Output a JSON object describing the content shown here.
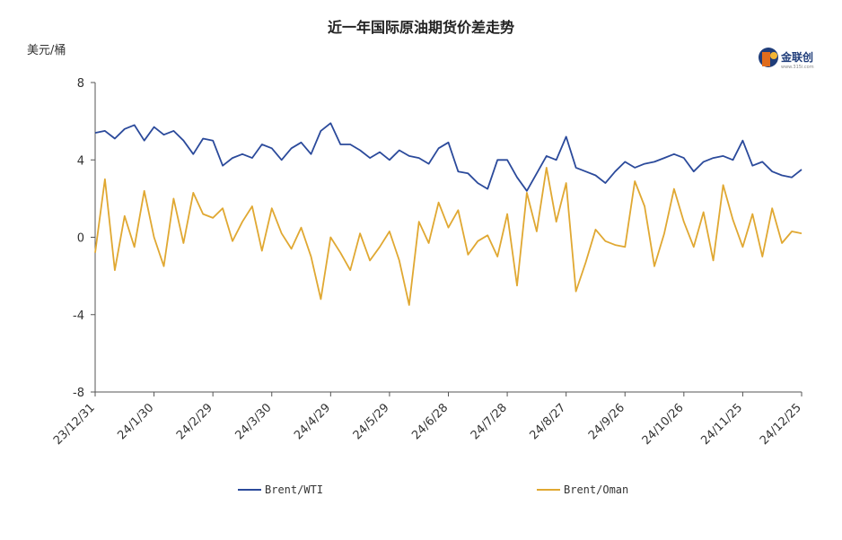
{
  "chart_data": {
    "type": "line",
    "title": "近一年国际原油期货价差走势",
    "ylabel": "美元/桶",
    "ylim": [
      -8,
      8
    ],
    "yticks": [
      8,
      4,
      0,
      -4,
      -8
    ],
    "x_tick_labels": [
      "23/12/31",
      "24/1/30",
      "24/2/29",
      "24/3/30",
      "24/4/29",
      "24/5/29",
      "24/6/28",
      "24/7/28",
      "24/8/27",
      "24/9/26",
      "24/10/26",
      "24/11/25",
      "24/12/25"
    ],
    "xlim": [
      "2023-12-31",
      "2024-12-25"
    ],
    "grid": false,
    "legend_position": "bottom",
    "series": [
      {
        "name": "Brent/WTI",
        "color": "#2b4a9b",
        "x": [
          "2023-12-31",
          "2024-01-05",
          "2024-01-10",
          "2024-01-15",
          "2024-01-20",
          "2024-01-25",
          "2024-01-30",
          "2024-02-04",
          "2024-02-09",
          "2024-02-14",
          "2024-02-19",
          "2024-02-24",
          "2024-02-29",
          "2024-03-05",
          "2024-03-10",
          "2024-03-15",
          "2024-03-20",
          "2024-03-25",
          "2024-03-30",
          "2024-04-04",
          "2024-04-09",
          "2024-04-14",
          "2024-04-19",
          "2024-04-24",
          "2024-04-29",
          "2024-05-04",
          "2024-05-09",
          "2024-05-14",
          "2024-05-19",
          "2024-05-24",
          "2024-05-29",
          "2024-06-03",
          "2024-06-08",
          "2024-06-13",
          "2024-06-18",
          "2024-06-23",
          "2024-06-28",
          "2024-07-03",
          "2024-07-08",
          "2024-07-13",
          "2024-07-18",
          "2024-07-23",
          "2024-07-28",
          "2024-08-02",
          "2024-08-07",
          "2024-08-12",
          "2024-08-17",
          "2024-08-22",
          "2024-08-27",
          "2024-09-01",
          "2024-09-06",
          "2024-09-11",
          "2024-09-16",
          "2024-09-21",
          "2024-09-26",
          "2024-10-01",
          "2024-10-06",
          "2024-10-11",
          "2024-10-16",
          "2024-10-21",
          "2024-10-26",
          "2024-10-31",
          "2024-11-05",
          "2024-11-10",
          "2024-11-15",
          "2024-11-20",
          "2024-11-25",
          "2024-11-30",
          "2024-12-05",
          "2024-12-10",
          "2024-12-15",
          "2024-12-20",
          "2024-12-25"
        ],
        "values": [
          5.4,
          5.5,
          5.1,
          5.6,
          5.8,
          5.0,
          5.7,
          5.3,
          5.5,
          5.0,
          4.3,
          5.1,
          5.0,
          3.7,
          4.1,
          4.3,
          4.1,
          4.8,
          4.6,
          4.0,
          4.6,
          4.9,
          4.3,
          5.5,
          5.9,
          4.8,
          4.8,
          4.5,
          4.1,
          4.4,
          4.0,
          4.5,
          4.2,
          4.1,
          3.8,
          4.6,
          4.9,
          3.4,
          3.3,
          2.8,
          2.5,
          4.0,
          4.0,
          3.1,
          2.4,
          3.3,
          4.2,
          4.0,
          5.2,
          3.6,
          3.4,
          3.2,
          2.8,
          3.4,
          3.9,
          3.6,
          3.8,
          3.9,
          4.1,
          4.3,
          4.1,
          3.4,
          3.9,
          4.1,
          4.2,
          4.0,
          5.0,
          3.7,
          3.9,
          3.4,
          3.2,
          3.1,
          3.5
        ]
      },
      {
        "name": "Brent/Oman",
        "color": "#e0a832",
        "x": [
          "2023-12-31",
          "2024-01-05",
          "2024-01-10",
          "2024-01-15",
          "2024-01-20",
          "2024-01-25",
          "2024-01-30",
          "2024-02-04",
          "2024-02-09",
          "2024-02-14",
          "2024-02-19",
          "2024-02-24",
          "2024-02-29",
          "2024-03-05",
          "2024-03-10",
          "2024-03-15",
          "2024-03-20",
          "2024-03-25",
          "2024-03-30",
          "2024-04-04",
          "2024-04-09",
          "2024-04-14",
          "2024-04-19",
          "2024-04-24",
          "2024-04-29",
          "2024-05-04",
          "2024-05-09",
          "2024-05-14",
          "2024-05-19",
          "2024-05-24",
          "2024-05-29",
          "2024-06-03",
          "2024-06-08",
          "2024-06-13",
          "2024-06-18",
          "2024-06-23",
          "2024-06-28",
          "2024-07-03",
          "2024-07-08",
          "2024-07-13",
          "2024-07-18",
          "2024-07-23",
          "2024-07-28",
          "2024-08-02",
          "2024-08-07",
          "2024-08-12",
          "2024-08-17",
          "2024-08-22",
          "2024-08-27",
          "2024-09-01",
          "2024-09-06",
          "2024-09-11",
          "2024-09-16",
          "2024-09-21",
          "2024-09-26",
          "2024-10-01",
          "2024-10-06",
          "2024-10-11",
          "2024-10-16",
          "2024-10-21",
          "2024-10-26",
          "2024-10-31",
          "2024-11-05",
          "2024-11-10",
          "2024-11-15",
          "2024-11-20",
          "2024-11-25",
          "2024-11-30",
          "2024-12-05",
          "2024-12-10",
          "2024-12-15",
          "2024-12-20",
          "2024-12-25"
        ],
        "values": [
          -0.8,
          3.0,
          -1.7,
          1.1,
          -0.5,
          2.4,
          0.0,
          -1.5,
          2.0,
          -0.3,
          2.3,
          1.2,
          1.0,
          1.5,
          -0.2,
          0.8,
          1.6,
          -0.7,
          1.5,
          0.2,
          -0.6,
          0.5,
          -1.0,
          -3.2,
          0.0,
          -0.8,
          -1.7,
          0.2,
          -1.2,
          -0.5,
          0.3,
          -1.2,
          -3.5,
          0.8,
          -0.3,
          1.8,
          0.5,
          1.4,
          -0.9,
          -0.2,
          0.1,
          -1.0,
          1.2,
          -2.5,
          2.3,
          0.3,
          3.6,
          0.8,
          2.8,
          -2.8,
          -1.3,
          0.4,
          -0.2,
          -0.4,
          -0.5,
          2.9,
          1.6,
          -1.5,
          0.2,
          2.5,
          0.8,
          -0.5,
          1.3,
          -1.2,
          2.7,
          0.9,
          -0.5,
          1.2,
          -1.0,
          1.5,
          -0.3,
          0.3,
          0.2
        ]
      }
    ]
  },
  "logo": {
    "text": "金联创",
    "sub": "www.315i.com"
  }
}
